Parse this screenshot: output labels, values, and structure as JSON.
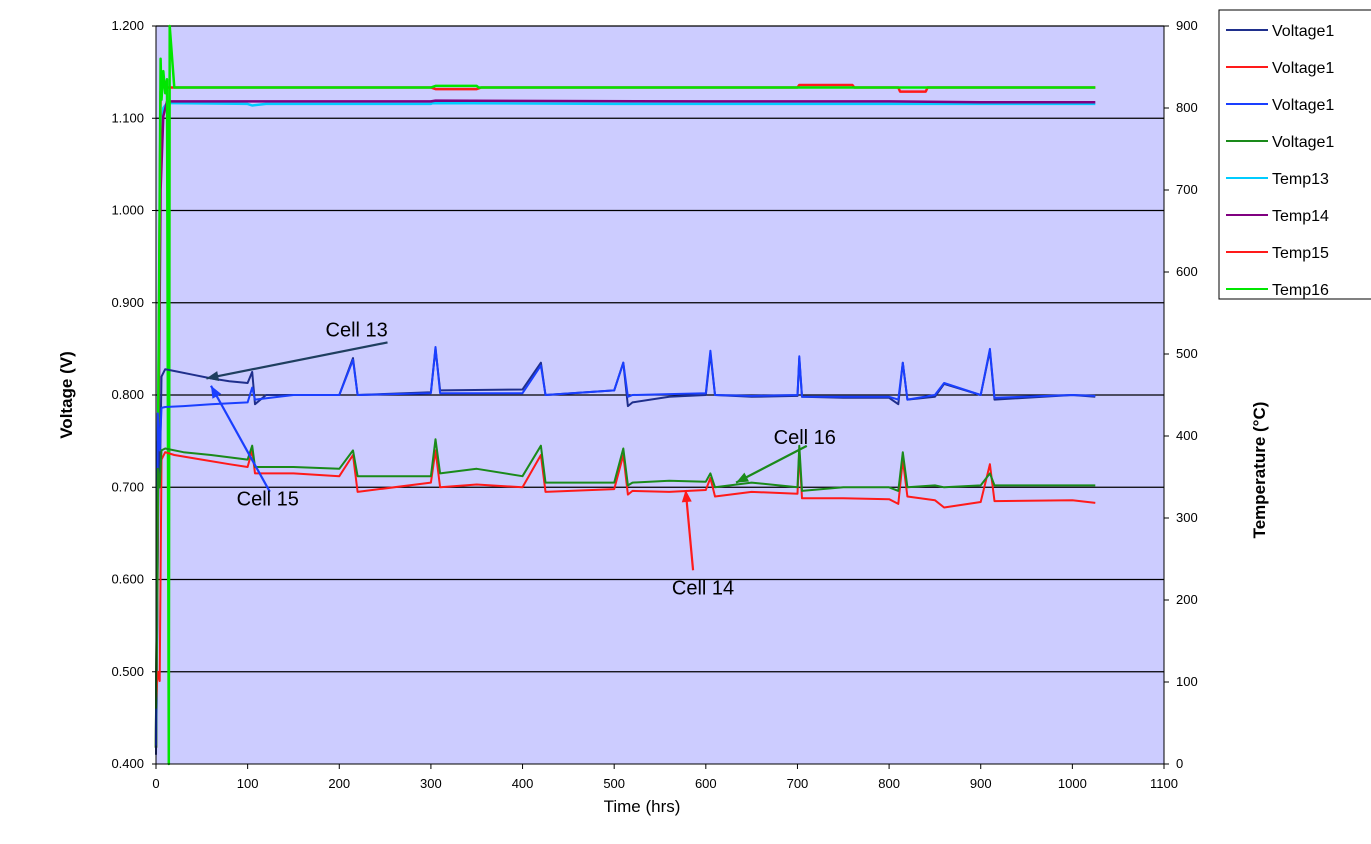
{
  "chart_data": {
    "type": "line",
    "xlabel": "Time (hrs)",
    "ylabel": "Voltage (V)",
    "y2label": "Temperature (°C)",
    "xlim": [
      0,
      1100
    ],
    "ylim": [
      0.4,
      1.2
    ],
    "y2lim": [
      0,
      900
    ],
    "x_ticks": [
      "0",
      "100",
      "200",
      "300",
      "400",
      "500",
      "600",
      "700",
      "800",
      "900",
      "1000",
      "1100"
    ],
    "y_ticks": [
      "0.400",
      "0.500",
      "0.600",
      "0.700",
      "0.800",
      "0.900",
      "1.000",
      "1.100",
      "1.200"
    ],
    "y2_ticks": [
      "0",
      "100",
      "200",
      "300",
      "400",
      "500",
      "600",
      "700",
      "800",
      "900"
    ],
    "grid": "horizontal",
    "plot_background": "#ccccff",
    "legend_position": "right",
    "legend": [
      "Voltage1",
      "Voltage1",
      "Voltage1",
      "Voltage1",
      "Temp13",
      "Temp14",
      "Temp15",
      "Temp16"
    ],
    "series": [
      {
        "name": "Voltage1",
        "label": "Cell 13",
        "axis": "left",
        "color": "#1f2f8c",
        "x": [
          0,
          2,
          4,
          6,
          10,
          20,
          40,
          60,
          80,
          100,
          105,
          108,
          120,
          200,
          215,
          220,
          300,
          305,
          310,
          400,
          420,
          425,
          500,
          510,
          515,
          520,
          560,
          600,
          605,
          610,
          650,
          700,
          702,
          705,
          750,
          800,
          810,
          815,
          820,
          850,
          860,
          900,
          910,
          915,
          1000,
          1025
        ],
        "y": [
          0.41,
          0.75,
          0.7,
          0.82,
          0.828,
          0.826,
          0.822,
          0.818,
          0.815,
          0.813,
          0.825,
          0.79,
          0.8,
          0.8,
          0.84,
          0.8,
          0.803,
          0.85,
          0.805,
          0.806,
          0.835,
          0.8,
          0.805,
          0.835,
          0.788,
          0.792,
          0.798,
          0.8,
          0.845,
          0.8,
          0.798,
          0.799,
          0.84,
          0.798,
          0.797,
          0.797,
          0.79,
          0.835,
          0.795,
          0.798,
          0.812,
          0.8,
          0.848,
          0.795,
          0.8,
          0.798
        ]
      },
      {
        "name": "Voltage1",
        "label": "Cell 14",
        "axis": "left",
        "color": "#ff1a1a",
        "x": [
          0,
          2,
          4,
          6,
          10,
          20,
          50,
          80,
          100,
          105,
          108,
          150,
          200,
          215,
          220,
          300,
          305,
          310,
          350,
          400,
          420,
          425,
          500,
          510,
          515,
          520,
          560,
          600,
          605,
          610,
          650,
          700,
          702,
          705,
          750,
          800,
          810,
          815,
          820,
          850,
          860,
          900,
          910,
          915,
          1000,
          1025
        ],
        "y": [
          0.47,
          0.5,
          0.49,
          0.73,
          0.738,
          0.735,
          0.73,
          0.725,
          0.722,
          0.74,
          0.715,
          0.715,
          0.712,
          0.735,
          0.695,
          0.705,
          0.74,
          0.7,
          0.703,
          0.7,
          0.735,
          0.695,
          0.698,
          0.735,
          0.692,
          0.696,
          0.695,
          0.697,
          0.71,
          0.69,
          0.695,
          0.693,
          0.74,
          0.688,
          0.688,
          0.687,
          0.682,
          0.73,
          0.69,
          0.686,
          0.678,
          0.684,
          0.725,
          0.685,
          0.686,
          0.683
        ]
      },
      {
        "name": "Voltage1",
        "label": "Cell 15",
        "axis": "left",
        "color": "#1a3fff",
        "x": [
          0,
          2,
          4,
          6,
          10,
          30,
          60,
          100,
          105,
          108,
          150,
          200,
          215,
          220,
          300,
          305,
          310,
          400,
          420,
          425,
          500,
          510,
          515,
          520,
          560,
          600,
          605,
          610,
          650,
          700,
          702,
          705,
          750,
          800,
          810,
          815,
          820,
          850,
          860,
          900,
          910,
          915,
          1000,
          1025
        ],
        "y": [
          0.42,
          0.78,
          0.74,
          0.786,
          0.787,
          0.788,
          0.79,
          0.792,
          0.808,
          0.795,
          0.8,
          0.8,
          0.838,
          0.8,
          0.802,
          0.852,
          0.802,
          0.802,
          0.832,
          0.8,
          0.805,
          0.835,
          0.798,
          0.8,
          0.801,
          0.802,
          0.848,
          0.8,
          0.799,
          0.8,
          0.842,
          0.798,
          0.798,
          0.798,
          0.795,
          0.835,
          0.795,
          0.8,
          0.813,
          0.8,
          0.85,
          0.797,
          0.8,
          0.799
        ]
      },
      {
        "name": "Voltage1",
        "label": "Cell 16",
        "axis": "left",
        "color": "#1a8a1a",
        "x": [
          0,
          2,
          4,
          6,
          10,
          30,
          60,
          100,
          105,
          108,
          150,
          200,
          215,
          220,
          300,
          305,
          310,
          350,
          400,
          420,
          425,
          500,
          510,
          515,
          520,
          560,
          600,
          605,
          610,
          650,
          700,
          702,
          705,
          750,
          800,
          810,
          815,
          820,
          850,
          860,
          900,
          910,
          915,
          1000,
          1025
        ],
        "y": [
          0.46,
          0.72,
          0.7,
          0.74,
          0.742,
          0.738,
          0.735,
          0.73,
          0.745,
          0.722,
          0.722,
          0.72,
          0.74,
          0.712,
          0.712,
          0.752,
          0.715,
          0.72,
          0.712,
          0.745,
          0.705,
          0.705,
          0.742,
          0.702,
          0.705,
          0.707,
          0.706,
          0.715,
          0.7,
          0.705,
          0.7,
          0.745,
          0.696,
          0.7,
          0.7,
          0.696,
          0.738,
          0.7,
          0.702,
          0.7,
          0.702,
          0.715,
          0.702,
          0.702,
          0.702
        ]
      },
      {
        "name": "Temp13",
        "axis": "right",
        "color": "#00ccff",
        "x": [
          0,
          5,
          8,
          12,
          20,
          100,
          105,
          120,
          300,
          302,
          500,
          800,
          1000,
          1025
        ],
        "y": [
          20,
          760,
          800,
          806,
          806,
          805,
          803,
          805,
          805,
          806,
          805,
          805,
          805,
          805
        ]
      },
      {
        "name": "Temp14",
        "axis": "right",
        "color": "#800080",
        "x": [
          0,
          5,
          8,
          12,
          20,
          100,
          300,
          305,
          600,
          700,
          800,
          900,
          1000,
          1025
        ],
        "y": [
          20,
          700,
          790,
          808,
          808,
          808,
          808,
          809,
          808,
          808,
          808,
          807,
          807,
          807
        ]
      },
      {
        "name": "Temp15",
        "axis": "right",
        "color": "#ff1a1a",
        "x": [
          0,
          5,
          8,
          12,
          20,
          300,
          305,
          350,
          355,
          700,
          702,
          760,
          762,
          810,
          812,
          840,
          842,
          1025
        ],
        "y": [
          20,
          820,
          835,
          825,
          825,
          825,
          823,
          823,
          825,
          825,
          828,
          828,
          825,
          825,
          820,
          820,
          825,
          825
        ]
      },
      {
        "name": "Temp16",
        "axis": "right",
        "color": "#00e600",
        "x": [
          0,
          5,
          6,
          8,
          10,
          12,
          14,
          15,
          20,
          300,
          305,
          350,
          352,
          1025
        ],
        "y": [
          20,
          860,
          810,
          845,
          818,
          835,
          0,
          900,
          825,
          825,
          827,
          827,
          825,
          825
        ]
      }
    ],
    "annotations": [
      {
        "text": "Cell 13",
        "x": 185,
        "y": 0.8635,
        "arrow_to": {
          "x": 55,
          "y": 0.818
        },
        "arrow_color": "#1f3f5f"
      },
      {
        "text": "Cell 15",
        "x": 122,
        "y": 0.68,
        "arrow_to": {
          "x": 60,
          "y": 0.81
        },
        "arrow_color": "#1a3fff"
      },
      {
        "text": "Cell 16",
        "x": 708,
        "y": 0.747,
        "arrow_to": {
          "x": 633,
          "y": 0.705
        },
        "arrow_color": "#1a8a1a"
      },
      {
        "text": "Cell 14",
        "x": 597,
        "y": 0.584,
        "arrow_to": {
          "x": 578,
          "y": 0.697
        },
        "arrow_color": "#ff1a1a"
      }
    ]
  }
}
